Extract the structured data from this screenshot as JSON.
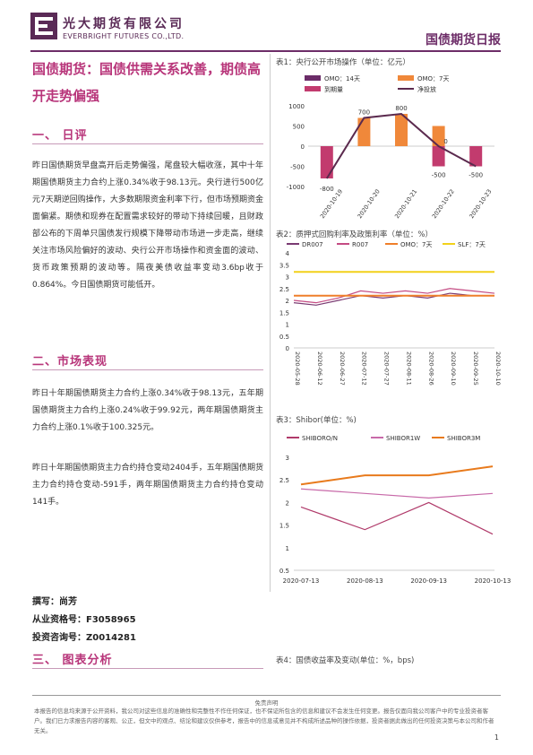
{
  "header": {
    "company_cn": "光大期货有限公司",
    "company_en": "EVERBRIGHT FUTURES CO.,LTD.",
    "report_name": "国债期货日报"
  },
  "left": {
    "title": "国债期货：国债供需关系改善，期债高开走势偏强",
    "sec1": "一、  日评",
    "sec1_text": "昨日国债期货早盘高开后走势偏强，尾盘较大幅收涨，其中十年期国债期货主力合约上涨0.34%收于98.13元。央行进行500亿元7天期逆回购操作，大多数期限资金利率下行，但市场预期资金面偏紧。期债和现券在配置需求较好的带动下持续回暖，且财政部公布的下周单只国债发行规模下降带动市场进一步走高，继续关注市场风险偏好的波动、央行公开市场操作和资金面的波动、货币政策预期的波动等。隔夜美债收益率变动3.6bp收于0.864%。今日国债期货可能低开。",
    "sec2": "二、市场表现",
    "sec2_p1": "昨日十年期国债期货主力合约上涨0.34%收于98.13元，五年期国债期货主力合约上涨0.24%收于99.92元，两年期国债期货主力合约上涨0.1%收于100.325元。",
    "sec2_p2": "昨日十年期国债期货主力合约持仓变动2404手，五年期国债期货主力合约持仓变动-591手，两年期国债期货主力合约持仓变动141手。",
    "author_label": "撰写：尚芳",
    "qual_label": "从业资格号：F3058965",
    "advisor_label": "投资咨询号：Z0014281",
    "sec3": "三、  图表分析"
  },
  "charts": {
    "chart1_caption": "表1：央行公开市场操作（单位：亿元）",
    "chart2_caption": "表2：质押式回购利率及政策利率（单位：%）",
    "chart3_caption": "表3：Shibor(单位：%)",
    "chart4_caption": "表4：国债收益率及变动(单位：%，bps)"
  },
  "chart_data": [
    {
      "type": "bar",
      "title": "表1：央行公开市场操作（单位：亿元）",
      "categories": [
        "2020-10-19",
        "2020-10-20",
        "2020-10-21",
        "2020-10-22",
        "2020-10-23"
      ],
      "series": [
        {
          "name": "OMO：14天",
          "values": [
            0,
            0,
            0,
            0,
            0
          ]
        },
        {
          "name": "OMO：7天",
          "values": [
            0,
            700,
            800,
            500,
            0
          ]
        },
        {
          "name": "到期量",
          "values": [
            -800,
            0,
            0,
            -500,
            -500
          ]
        },
        {
          "name": "净投放",
          "values": [
            -800,
            700,
            800,
            0,
            -500
          ]
        }
      ],
      "data_labels": [
        "-800",
        "700",
        "800",
        "-500",
        "0",
        "-500"
      ],
      "ylim": [
        -1000,
        1000
      ],
      "yticks": [
        "1000",
        "500",
        "0",
        "-500",
        "-1000"
      ],
      "colors": {
        "omo14": "#6b2c68",
        "omo7": "#f0883a",
        "maturity": "#c23b6e",
        "net": "#5b2a4e"
      }
    },
    {
      "type": "line",
      "title": "表2：质押式回购利率及政策利率（单位：%）",
      "x": [
        "2020-05-28",
        "2020-06-12",
        "2020-06-27",
        "2020-07-12",
        "2020-07-27",
        "2020-08-11",
        "2020-08-26",
        "2020-09-10",
        "2020-09-25",
        "2020-10-10"
      ],
      "series": [
        {
          "name": "DR007",
          "values": [
            1.9,
            1.8,
            2.0,
            2.2,
            2.1,
            2.2,
            2.1,
            2.3,
            2.2,
            2.2
          ]
        },
        {
          "name": "R007",
          "values": [
            2.0,
            1.9,
            2.1,
            2.4,
            2.3,
            2.4,
            2.3,
            2.5,
            2.4,
            2.3
          ]
        },
        {
          "name": "OMO：7天",
          "values": [
            2.2,
            2.2,
            2.2,
            2.2,
            2.2,
            2.2,
            2.2,
            2.2,
            2.2,
            2.2
          ]
        },
        {
          "name": "SLF：7天",
          "values": [
            3.2,
            3.2,
            3.2,
            3.2,
            3.2,
            3.2,
            3.2,
            3.2,
            3.2,
            3.2
          ]
        }
      ],
      "ylim": [
        0,
        4
      ],
      "yticks": [
        "4",
        "3.5",
        "3",
        "2.5",
        "2",
        "1.5",
        "1",
        "0.5",
        "0"
      ],
      "colors": {
        "dr007": "#7a3a72",
        "r007": "#c44b83",
        "omo7": "#ef7f2a",
        "slf7": "#f2d11a"
      }
    },
    {
      "type": "line",
      "title": "表3：Shibor(单位：%)",
      "x": [
        "2020-07-13",
        "2020-08-13",
        "2020-09-13",
        "2020-10-13"
      ],
      "series": [
        {
          "name": "SHIBORO/N",
          "values": [
            1.9,
            1.4,
            2.0,
            1.3
          ]
        },
        {
          "name": "SHIBOR1W",
          "values": [
            2.3,
            2.2,
            2.1,
            2.2
          ]
        },
        {
          "name": "SHIBOR3M",
          "values": [
            2.4,
            2.6,
            2.6,
            2.8
          ]
        }
      ],
      "ylim": [
        0.5,
        3
      ],
      "yticks": [
        "3",
        "2.5",
        "2",
        "1.5",
        "1",
        "0.5"
      ],
      "colors": {
        "on": "#b03a6a",
        "w1": "#c86aa9",
        "m3": "#e87a1c"
      }
    }
  ],
  "footer": {
    "disclaimer_title": "免责声明",
    "disclaimer": "本报告的信息均来源于公开资料，我公司对这些信息的准确性和完整性不作任何保证，也不保证所包含的信息和建议不会发生任何变更。报告仅面向我公司客户中的专业投资者客户。我们已力求报告内容的客观、公正，但文中的观点、结论和建议仅供参考，报告中的信息或意见并不构成所述品种的操作依据，投资者据此做出的任何投资决策与本公司和作者无关。",
    "page": "1"
  }
}
